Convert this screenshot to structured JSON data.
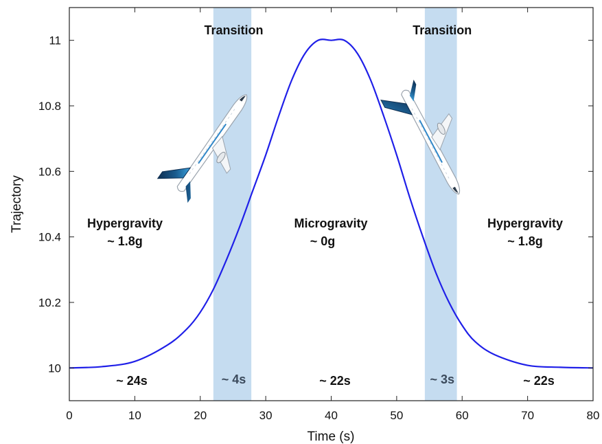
{
  "chart_data": {
    "type": "line",
    "xlabel": "Time (s)",
    "ylabel": "Trajectory",
    "xlim": [
      0,
      80
    ],
    "ylim": [
      9.9,
      11.1
    ],
    "xticks": [
      0,
      10,
      20,
      30,
      40,
      50,
      60,
      70,
      80
    ],
    "xtick_labels": [
      "0",
      "10",
      "20",
      "30",
      "40",
      "50",
      "60",
      "70",
      "80"
    ],
    "yticks": [
      10,
      10.2,
      10.4,
      10.6,
      10.8,
      11
    ],
    "ytick_labels": [
      "10",
      "10.2",
      "10.4",
      "10.6",
      "10.8",
      "11"
    ],
    "grid": false,
    "series": [
      {
        "color": "#1f1fe8",
        "x": [
          0,
          5,
          10,
          15,
          18,
          20,
          22,
          24,
          26,
          28,
          30,
          32,
          34,
          36,
          38,
          40,
          42,
          44,
          46,
          48,
          50,
          52,
          54,
          56,
          58,
          60,
          62,
          65,
          70,
          75,
          80
        ],
        "y": [
          10.0,
          10.004,
          10.02,
          10.07,
          10.12,
          10.17,
          10.24,
          10.33,
          10.43,
          10.54,
          10.65,
          10.77,
          10.88,
          10.96,
          11.0,
          11.0,
          11.0,
          10.96,
          10.88,
          10.77,
          10.65,
          10.52,
          10.4,
          10.29,
          10.2,
          10.13,
          10.08,
          10.04,
          10.008,
          10.002,
          10.0
        ]
      }
    ],
    "bands": [
      {
        "x0": 22,
        "x1": 27.8,
        "label": "Transition",
        "duration": "~ 4s"
      },
      {
        "x0": 54.3,
        "x1": 59.2,
        "label": "Transition",
        "duration": "~ 3s"
      }
    ],
    "band_color": "#c5dcf0",
    "annotations": [
      {
        "id": "phase1",
        "x": 10,
        "lines": [
          "Hypergravity",
          "~ 1.8g"
        ],
        "duration": "~ 24s"
      },
      {
        "id": "phase2",
        "x": 40,
        "lines": [
          "Microgravity",
          "~ 0g"
        ],
        "duration": "~ 22s"
      },
      {
        "id": "phase3",
        "x": 70,
        "lines": [
          "Hypergravity",
          "~ 1.8g"
        ],
        "duration": "~ 22s"
      }
    ],
    "images": [
      {
        "name": "aircraft-climbing",
        "logo_text": "zero g"
      },
      {
        "name": "aircraft-descending",
        "logo_text": "zero g"
      }
    ],
    "colors": {
      "body": "#ffffff",
      "tail": "#1b4f7a",
      "tail_accent": "#2f86c7",
      "outline": "#9aa3ad"
    }
  }
}
